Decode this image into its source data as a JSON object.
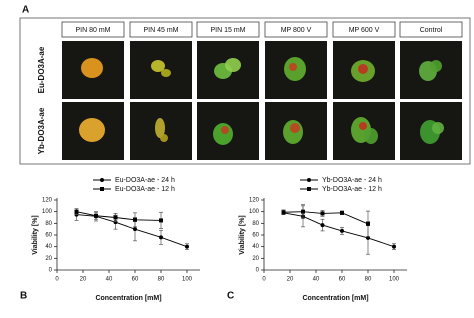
{
  "panel_a": {
    "panel_label": "A",
    "columns": [
      "PIN 80 mM",
      "PIN 45 mM",
      "PIN 15 mM",
      "MP 800 V",
      "MP 600 V",
      "Control"
    ],
    "rows": [
      "Eu-DO3A-ae",
      "Yb-DO3A-ae"
    ]
  },
  "chart_data": [
    {
      "type": "line",
      "panel_label": "B",
      "x_label": "Concentration [mM]",
      "y_label": "Viability [%]",
      "xlim": [
        0,
        110
      ],
      "xticks": [
        0,
        20,
        40,
        60,
        80,
        100
      ],
      "ylim": [
        0,
        120
      ],
      "yticks": [
        0,
        20,
        40,
        60,
        80,
        100,
        120
      ],
      "series": [
        {
          "name": "Eu-DO3A-ae - 24 h",
          "color": "#000000",
          "marker": "circle",
          "x": [
            15,
            30,
            45,
            60,
            80,
            100
          ],
          "values": [
            95,
            92,
            82,
            70,
            56,
            40
          ],
          "errors": [
            10,
            8,
            12,
            20,
            12,
            5
          ]
        },
        {
          "name": "Eu-DO3A-ae - 12 h",
          "color": "#000000",
          "marker": "square",
          "x": [
            15,
            30,
            45,
            60,
            80
          ],
          "values": [
            100,
            93,
            90,
            86,
            85
          ],
          "errors": [
            5,
            6,
            7,
            12,
            14
          ]
        }
      ]
    },
    {
      "type": "line",
      "panel_label": "C",
      "x_label": "Concentration [mM]",
      "y_label": "Viability [%]",
      "xlim": [
        0,
        110
      ],
      "xticks": [
        0,
        20,
        40,
        60,
        80,
        100
      ],
      "ylim": [
        0,
        120
      ],
      "yticks": [
        0,
        20,
        40,
        60,
        80,
        100,
        120
      ],
      "series": [
        {
          "name": "Yb-DO3A-ae - 24 h",
          "color": "#000000",
          "marker": "circle",
          "x": [
            15,
            30,
            45,
            60,
            80,
            100
          ],
          "values": [
            98,
            92,
            77,
            67,
            55,
            40
          ],
          "errors": [
            3,
            18,
            10,
            6,
            28,
            5
          ]
        },
        {
          "name": "Yb-DO3A-ae - 12 h",
          "color": "#000000",
          "marker": "square",
          "x": [
            15,
            30,
            45,
            60,
            80
          ],
          "values": [
            99,
            100,
            97,
            98,
            79
          ],
          "errors": [
            4,
            12,
            5,
            3,
            22
          ]
        }
      ]
    }
  ]
}
